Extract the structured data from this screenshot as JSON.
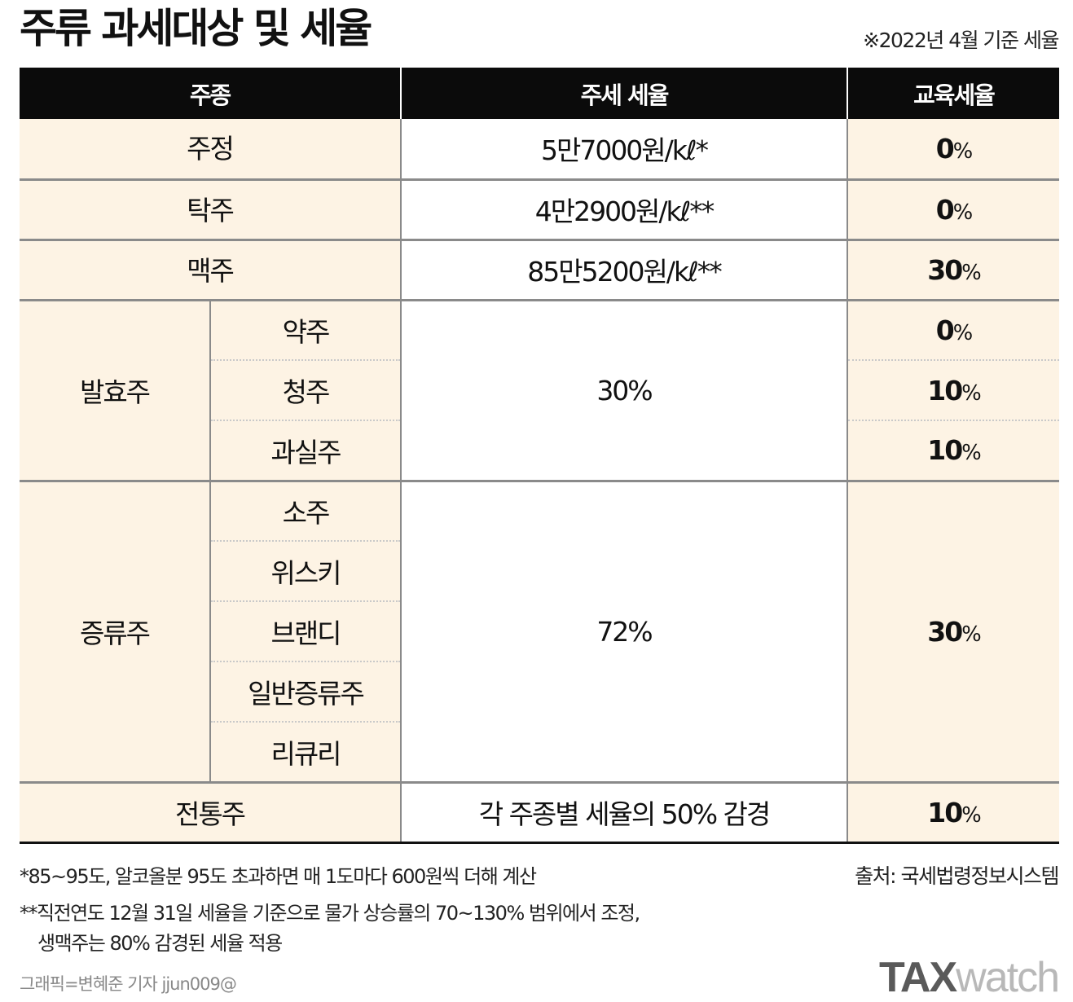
{
  "title": "주류 과세대상 및 세율",
  "basis_note": "※2022년 4월 기준 세율",
  "header": {
    "col1": "주종",
    "col2": "주세 세율",
    "col3": "교육세율"
  },
  "rows": {
    "jujeong": {
      "name": "주정",
      "tax": "5만7000원/kℓ*",
      "edu": "0"
    },
    "takju": {
      "name": "탁주",
      "tax": "4만2900원/kℓ**",
      "edu": "0"
    },
    "maekju": {
      "name": "맥주",
      "tax": "85만5200원/kℓ**",
      "edu": "30"
    },
    "fermented": {
      "group": "발효주",
      "tax": "30%",
      "items": [
        {
          "name": "약주",
          "edu": "0"
        },
        {
          "name": "청주",
          "edu": "10"
        },
        {
          "name": "과실주",
          "edu": "10"
        }
      ]
    },
    "distilled": {
      "group": "증류주",
      "tax": "72%",
      "edu": "30",
      "items": [
        "소주",
        "위스키",
        "브랜디",
        "일반증류주",
        "리큐리"
      ]
    },
    "traditional": {
      "name": "전통주",
      "tax": "각 주종별 세율의 50% 감경",
      "edu": "10"
    }
  },
  "percent_sign": "%",
  "footnotes": {
    "note1": "*85~95도, 알코올분 95도 초과하면 매 1도마다 600원씩 더해 계산",
    "note2": "**직전연도 12월 31일 세율을 기준으로 물가 상승률의 70~130% 범위에서 조정,",
    "note3": "생맥주는 80% 감경된 세율 적용"
  },
  "source": "출처: 국세법령정보시스템",
  "credit": "그래픽=변혜준 기자 jjun009@",
  "logo": {
    "bold": "TAX",
    "light": "watch"
  },
  "colors": {
    "header_bg": "#0b0b0b",
    "cream": "#fdf3e4",
    "rule": "#8a8a8a"
  }
}
